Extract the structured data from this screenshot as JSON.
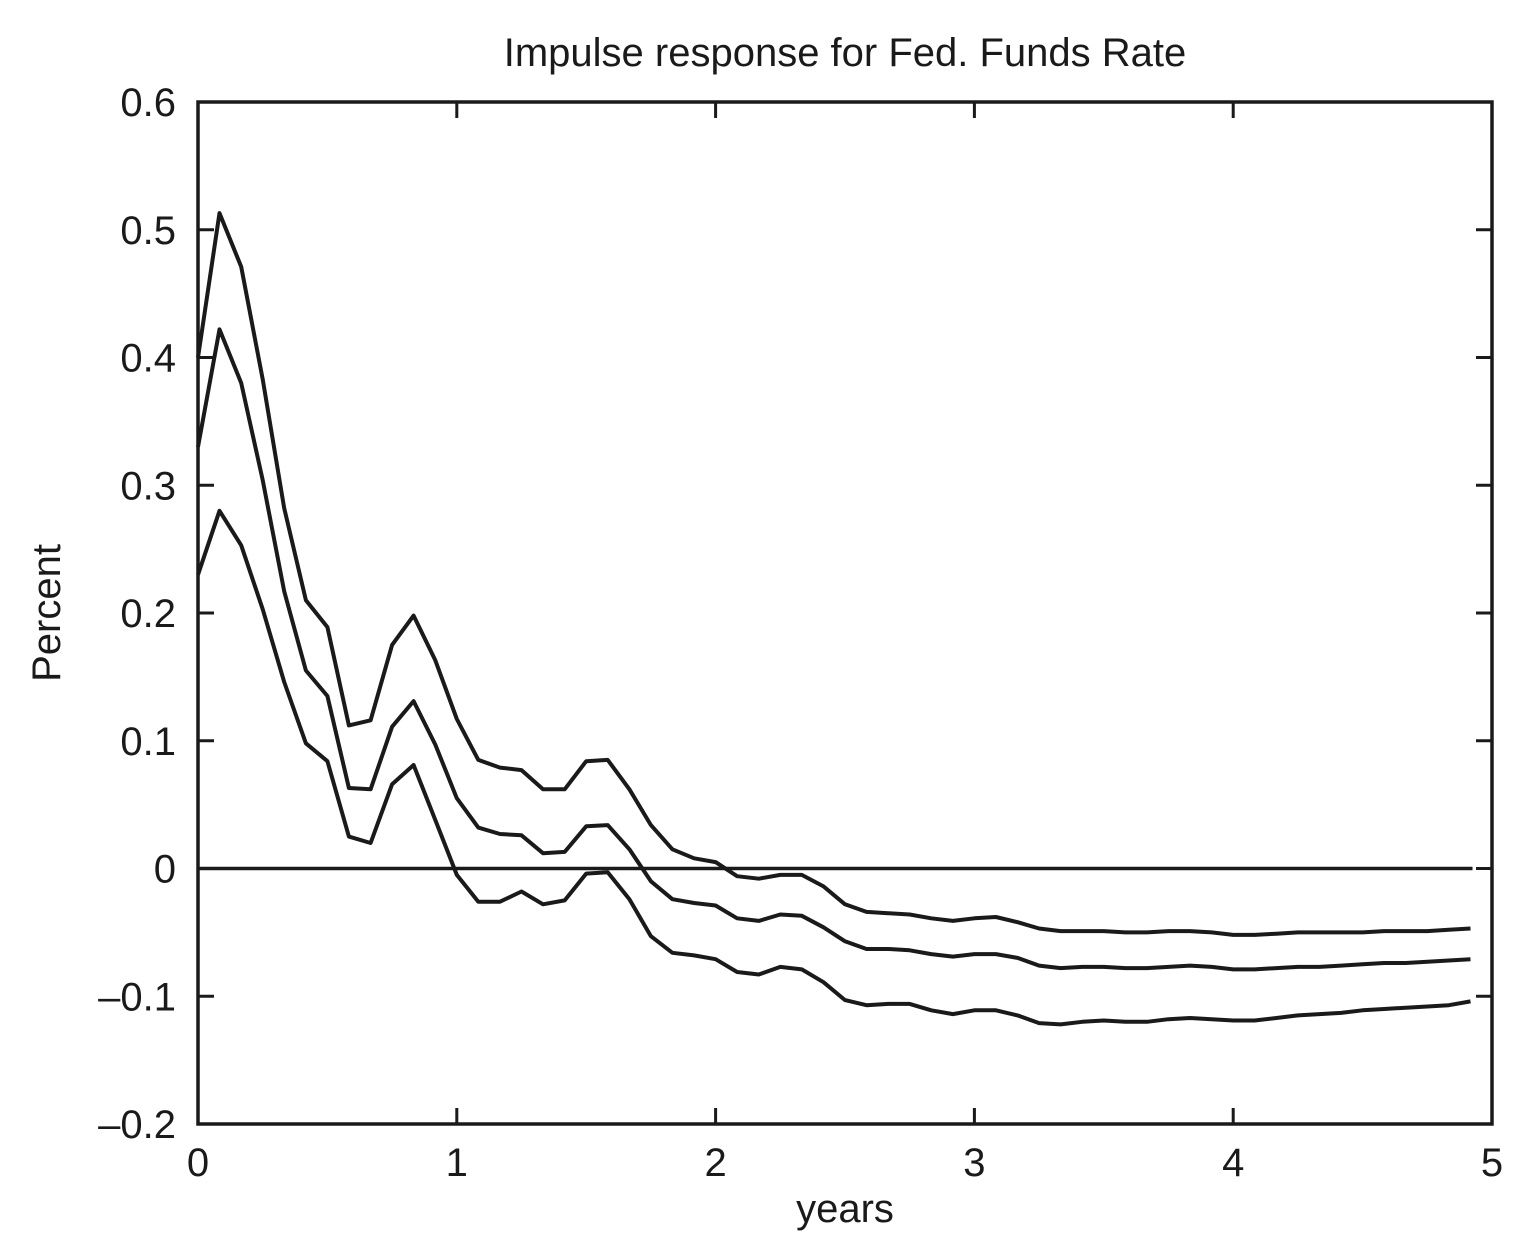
{
  "chart_data": {
    "type": "line",
    "title": "Impulse response for Fed. Funds Rate",
    "xlabel": "years",
    "ylabel": "Percent",
    "xlim": [
      0,
      5
    ],
    "ylim": [
      -0.2,
      0.6
    ],
    "x_ticks": [
      0,
      1,
      2,
      3,
      4,
      5
    ],
    "x_tick_labels": [
      "0",
      "1",
      "2",
      "3",
      "4",
      "5"
    ],
    "y_ticks": [
      -0.2,
      -0.1,
      0,
      0.1,
      0.2,
      0.3,
      0.4,
      0.5,
      0.6
    ],
    "y_tick_labels": [
      "–0.2",
      "–0.1",
      "0",
      "0.1",
      "0.2",
      "0.3",
      "0.4",
      "0.5",
      "0.6"
    ],
    "grid": false,
    "legend": "none",
    "reference_line_y": 0,
    "x": [
      0,
      0.083,
      0.167,
      0.25,
      0.333,
      0.417,
      0.5,
      0.583,
      0.667,
      0.75,
      0.833,
      0.917,
      1.0,
      1.083,
      1.167,
      1.25,
      1.333,
      1.417,
      1.5,
      1.583,
      1.667,
      1.75,
      1.833,
      1.917,
      2.0,
      2.083,
      2.167,
      2.25,
      2.333,
      2.417,
      2.5,
      2.583,
      2.667,
      2.75,
      2.833,
      2.917,
      3.0,
      3.083,
      3.167,
      3.25,
      3.333,
      3.417,
      3.5,
      3.583,
      3.667,
      3.75,
      3.833,
      3.917,
      4.0,
      4.083,
      4.167,
      4.25,
      4.333,
      4.417,
      4.5,
      4.583,
      4.667,
      4.75,
      4.833,
      4.917
    ],
    "series": [
      {
        "values": [
          0.4,
          0.513,
          0.471,
          0.383,
          0.282,
          0.21,
          0.189,
          0.112,
          0.116,
          0.175,
          0.198,
          0.163,
          0.117,
          0.085,
          0.079,
          0.077,
          0.062,
          0.062,
          0.084,
          0.085,
          0.062,
          0.034,
          0.015,
          0.008,
          0.005,
          -0.006,
          -0.008,
          -0.005,
          -0.005,
          -0.014,
          -0.028,
          -0.034,
          -0.035,
          -0.036,
          -0.039,
          -0.041,
          -0.039,
          -0.038,
          -0.042,
          -0.047,
          -0.049,
          -0.049,
          -0.049,
          -0.05,
          -0.05,
          -0.049,
          -0.049,
          -0.05,
          -0.052,
          -0.052,
          -0.051,
          -0.05,
          -0.05,
          -0.05,
          -0.05,
          -0.049,
          -0.049,
          -0.049,
          -0.048,
          -0.047
        ]
      },
      {
        "values": [
          0.33,
          0.422,
          0.38,
          0.304,
          0.217,
          0.155,
          0.135,
          0.063,
          0.062,
          0.111,
          0.131,
          0.097,
          0.055,
          0.032,
          0.027,
          0.026,
          0.012,
          0.013,
          0.033,
          0.034,
          0.015,
          -0.01,
          -0.024,
          -0.027,
          -0.029,
          -0.039,
          -0.041,
          -0.036,
          -0.037,
          -0.046,
          -0.057,
          -0.063,
          -0.063,
          -0.064,
          -0.067,
          -0.069,
          -0.067,
          -0.067,
          -0.07,
          -0.076,
          -0.078,
          -0.077,
          -0.077,
          -0.078,
          -0.078,
          -0.077,
          -0.076,
          -0.077,
          -0.079,
          -0.079,
          -0.078,
          -0.077,
          -0.077,
          -0.076,
          -0.075,
          -0.074,
          -0.074,
          -0.073,
          -0.072,
          -0.071
        ]
      },
      {
        "values": [
          0.23,
          0.28,
          0.253,
          0.203,
          0.146,
          0.098,
          0.084,
          0.025,
          0.02,
          0.066,
          0.081,
          0.038,
          -0.005,
          -0.026,
          -0.026,
          -0.018,
          -0.028,
          -0.025,
          -0.004,
          -0.003,
          -0.024,
          -0.053,
          -0.066,
          -0.068,
          -0.071,
          -0.081,
          -0.083,
          -0.077,
          -0.079,
          -0.089,
          -0.103,
          -0.107,
          -0.106,
          -0.106,
          -0.111,
          -0.114,
          -0.111,
          -0.111,
          -0.115,
          -0.121,
          -0.122,
          -0.12,
          -0.119,
          -0.12,
          -0.12,
          -0.118,
          -0.117,
          -0.118,
          -0.119,
          -0.119,
          -0.117,
          -0.115,
          -0.114,
          -0.113,
          -0.111,
          -0.11,
          -0.109,
          -0.108,
          -0.107,
          -0.104
        ]
      }
    ]
  }
}
